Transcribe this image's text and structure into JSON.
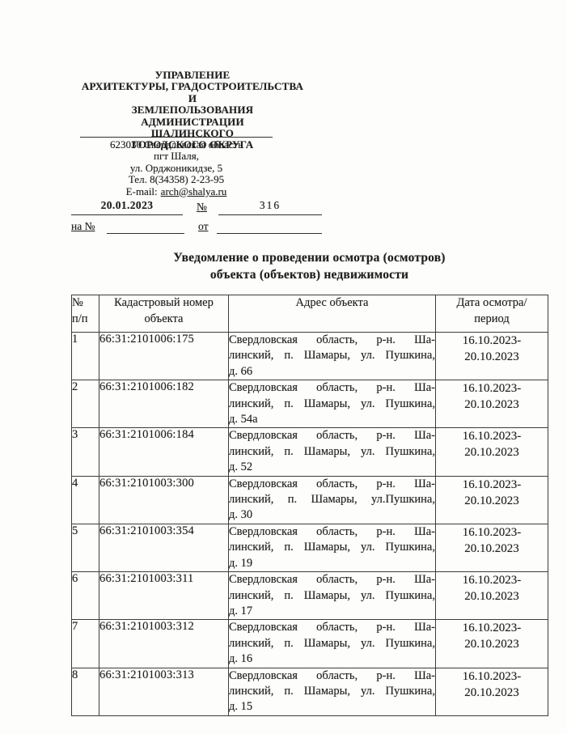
{
  "colors": {
    "ink": "#1f1f1f",
    "paper": "#fdfdfb",
    "border": "#3c3c3c"
  },
  "letterhead": {
    "org_lines": [
      "УПРАВЛЕНИЕ",
      "АРХИТЕКТУРЫ, ГРАДОСТРОИТЕЛЬСТВА И",
      "ЗЕМЛЕПОЛЬЗОВАНИЯ",
      "АДМИНИСТРАЦИИ",
      "ШАЛИНСКОГО",
      "ГОРОДСКОГО ОКРУГА"
    ],
    "address_lines": [
      "623030 Свердловская область",
      "пгт Шаля,",
      "ул. Орджоникидзе, 5",
      "Тел. 8(34358) 2-23-95"
    ],
    "email_label": "E-mail:",
    "email": "arch@shalya.ru"
  },
  "reference": {
    "date": "20.01.2023",
    "number_label": "№",
    "number": "316",
    "incoming_label": "на №",
    "from_label": "от"
  },
  "title_lines": [
    "Уведомление о проведении осмотра (осмотров)",
    "объекта (объектов) недвижимости"
  ],
  "table": {
    "headers": {
      "num": [
        "№",
        "п/п"
      ],
      "cadastral": [
        "Кадастровый номер",
        "объекта"
      ],
      "address": "Адрес объекта",
      "period": [
        "Дата осмотра/",
        "период"
      ]
    },
    "rows": [
      {
        "num": "1",
        "cadastral": "66:31:2101006:175",
        "address_lines": [
          "Свердловская область, р-н. Ша-",
          "линский, п. Шамары, ул. Пушкина,",
          "д. 66"
        ],
        "period_lines": [
          "16.10.2023-",
          "20.10.2023"
        ]
      },
      {
        "num": "2",
        "cadastral": "66:31:2101006:182",
        "address_lines": [
          "Свердловская область, р-н. Ша-",
          "линский, п. Шамары, ул. Пушкина,",
          "д. 54а"
        ],
        "period_lines": [
          "16.10.2023-",
          "20.10.2023"
        ]
      },
      {
        "num": "3",
        "cadastral": "66:31:2101006:184",
        "address_lines": [
          "Свердловская область, р-н. Ша-",
          "линский, п. Шамары, ул. Пушкина,",
          "д. 52"
        ],
        "period_lines": [
          "16.10.2023-",
          "20.10.2023"
        ]
      },
      {
        "num": "4",
        "cadastral": "66:31:2101003:300",
        "address_lines": [
          "Свердловская область, р-н. Ша-",
          "линский, п. Шамары, ул.Пушкина,",
          "д. 30"
        ],
        "period_lines": [
          "16.10.2023-",
          "20.10.2023"
        ]
      },
      {
        "num": "5",
        "cadastral": "66:31:2101003:354",
        "address_lines": [
          "Свердловская область, р-н. Ша-",
          "линский, п. Шамары, ул. Пушкина,",
          "д. 19"
        ],
        "period_lines": [
          "16.10.2023-",
          "20.10.2023"
        ]
      },
      {
        "num": "6",
        "cadastral": "66:31:2101003:311",
        "address_lines": [
          "Свердловская область, р-н. Ша-",
          "линский, п. Шамары, ул. Пушкина,",
          "д. 17"
        ],
        "period_lines": [
          "16.10.2023-",
          "20.10.2023"
        ]
      },
      {
        "num": "7",
        "cadastral": "66:31:2101003:312",
        "address_lines": [
          "Свердловская область, р-н. Ша-",
          "линский, п. Шамары, ул. Пушкина,",
          "д. 16"
        ],
        "period_lines": [
          "16.10.2023-",
          "20.10.2023"
        ]
      },
      {
        "num": "8",
        "cadastral": "66:31:2101003:313",
        "address_lines": [
          "Свердловская область, р-н. Ша-",
          "линский, п. Шамары, ул. Пушкина,",
          "д. 15"
        ],
        "period_lines": [
          "16.10.2023-",
          "20.10.2023"
        ]
      }
    ]
  }
}
